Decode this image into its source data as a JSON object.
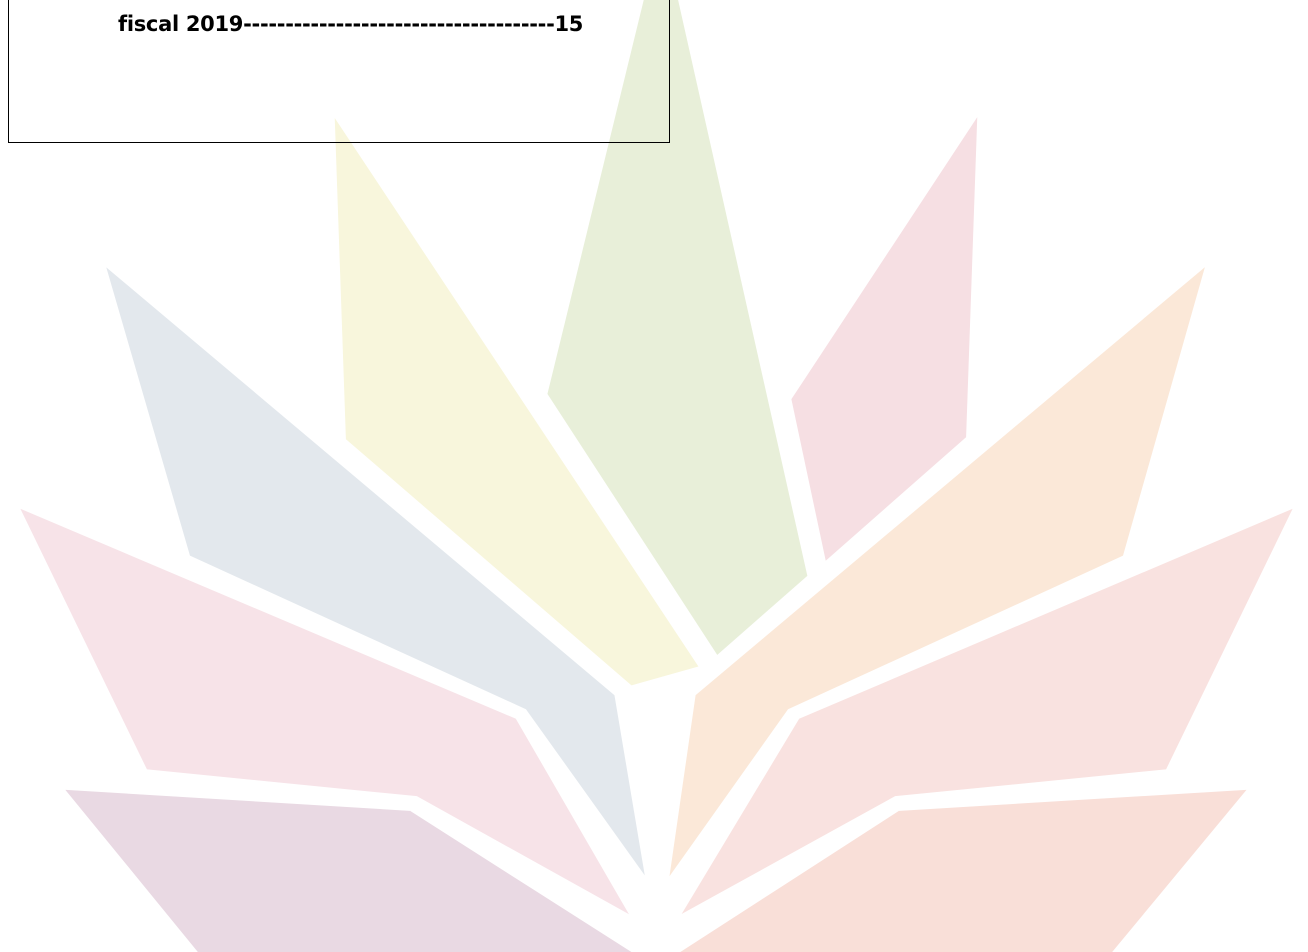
{
  "toc": {
    "entries": [
      {
        "text": "fiscal 2019-------------------------------------15"
      }
    ]
  }
}
